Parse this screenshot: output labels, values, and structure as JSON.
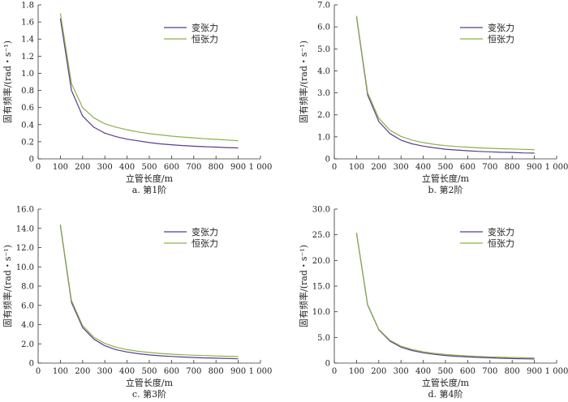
{
  "chart_data": [
    {
      "type": "line",
      "caption": "a. 第1阶",
      "xlabel": "立管长度/m",
      "ylabel": "固有频率/(rad・s⁻¹)",
      "xlim": [
        0,
        1000
      ],
      "ylim": [
        0,
        1.8
      ],
      "xticks": [
        "0",
        "100",
        "200",
        "300",
        "400",
        "500",
        "600",
        "700",
        "800",
        "900",
        "1 000"
      ],
      "yticks": [
        "0",
        "0.2",
        "0.4",
        "0.6",
        "0.8",
        "1.0",
        "1.2",
        "1.4",
        "1.6",
        "1.8"
      ],
      "legend": "top-right",
      "x": [
        100,
        150,
        200,
        250,
        300,
        350,
        400,
        450,
        500,
        550,
        600,
        650,
        700,
        750,
        800,
        850,
        900
      ],
      "series": [
        {
          "name": "变张力",
          "color": "#5b3c8f",
          "values": [
            1.64,
            0.8,
            0.5,
            0.37,
            0.3,
            0.26,
            0.23,
            0.21,
            0.19,
            0.175,
            0.165,
            0.155,
            0.148,
            0.142,
            0.137,
            0.132,
            0.128
          ]
        },
        {
          "name": "恒张力",
          "color": "#8cb04a",
          "values": [
            1.7,
            0.88,
            0.6,
            0.48,
            0.41,
            0.37,
            0.34,
            0.315,
            0.295,
            0.28,
            0.265,
            0.255,
            0.245,
            0.235,
            0.228,
            0.22,
            0.212
          ]
        }
      ]
    },
    {
      "type": "line",
      "caption": "b. 第2阶",
      "xlabel": "立管长度/m",
      "ylabel": "固有频率/(rad・s⁻¹)",
      "xlim": [
        0,
        1000
      ],
      "ylim": [
        0,
        7
      ],
      "xticks": [
        "0",
        "100",
        "200",
        "300",
        "400",
        "500",
        "600",
        "700",
        "800",
        "900",
        "1 000"
      ],
      "yticks": [
        "0",
        "1.0",
        "2.0",
        "3.0",
        "4.0",
        "5.0",
        "6.0",
        "7.0"
      ],
      "legend": "top-right",
      "x": [
        100,
        150,
        200,
        250,
        300,
        350,
        400,
        450,
        500,
        550,
        600,
        650,
        700,
        750,
        800,
        850,
        900
      ],
      "series": [
        {
          "name": "变张力",
          "color": "#5b3c8f",
          "values": [
            6.45,
            2.9,
            1.7,
            1.15,
            0.85,
            0.68,
            0.58,
            0.5,
            0.44,
            0.4,
            0.37,
            0.34,
            0.32,
            0.3,
            0.29,
            0.27,
            0.26
          ]
        },
        {
          "name": "恒张力",
          "color": "#8cb04a",
          "values": [
            6.5,
            3.0,
            1.85,
            1.3,
            1.02,
            0.85,
            0.74,
            0.66,
            0.6,
            0.56,
            0.53,
            0.5,
            0.48,
            0.46,
            0.45,
            0.43,
            0.42
          ]
        }
      ]
    },
    {
      "type": "line",
      "caption": "c. 第3阶",
      "xlabel": "立管长度/m",
      "ylabel": "固有频率/(rad・s⁻¹)",
      "xlim": [
        0,
        1000
      ],
      "ylim": [
        0,
        16
      ],
      "xticks": [
        "0",
        "100",
        "200",
        "300",
        "400",
        "500",
        "600",
        "700",
        "800",
        "900",
        "1 000"
      ],
      "yticks": [
        "0",
        "2.0",
        "4.0",
        "6.0",
        "8.0",
        "10.0",
        "12.0",
        "14.0",
        "16.0"
      ],
      "legend": "top-right",
      "x": [
        100,
        150,
        200,
        250,
        300,
        350,
        400,
        450,
        500,
        550,
        600,
        650,
        700,
        750,
        800,
        850,
        900
      ],
      "series": [
        {
          "name": "变张力",
          "color": "#5b3c8f",
          "values": [
            14.3,
            6.3,
            3.7,
            2.5,
            1.8,
            1.4,
            1.15,
            0.98,
            0.85,
            0.76,
            0.69,
            0.63,
            0.58,
            0.54,
            0.51,
            0.48,
            0.45
          ]
        },
        {
          "name": "恒张力",
          "color": "#8cb04a",
          "values": [
            14.4,
            6.5,
            3.9,
            2.7,
            2.05,
            1.65,
            1.4,
            1.22,
            1.1,
            1.0,
            0.93,
            0.87,
            0.82,
            0.78,
            0.74,
            0.71,
            0.68
          ]
        }
      ]
    },
    {
      "type": "line",
      "caption": "d. 第4阶",
      "xlabel": "立管长度/m",
      "ylabel": "固有频率/(rad・s⁻¹)",
      "xlim": [
        0,
        1000
      ],
      "ylim": [
        0,
        30
      ],
      "xticks": [
        "0",
        "100",
        "200",
        "300",
        "400",
        "500",
        "600",
        "700",
        "800",
        "900",
        "1 000"
      ],
      "yticks": [
        "0",
        "5.0",
        "10.0",
        "15.0",
        "20.0",
        "25.0",
        "30.0"
      ],
      "legend": "top-right",
      "x": [
        100,
        150,
        200,
        250,
        300,
        350,
        400,
        450,
        500,
        550,
        600,
        650,
        700,
        750,
        800,
        850,
        900
      ],
      "series": [
        {
          "name": "变张力",
          "color": "#5b3c8f",
          "values": [
            25.3,
            11.3,
            6.5,
            4.3,
            3.1,
            2.45,
            2.0,
            1.7,
            1.48,
            1.32,
            1.2,
            1.1,
            1.02,
            0.95,
            0.89,
            0.84,
            0.8
          ]
        },
        {
          "name": "恒张力",
          "color": "#8cb04a",
          "values": [
            25.4,
            11.4,
            6.6,
            4.45,
            3.3,
            2.65,
            2.2,
            1.9,
            1.68,
            1.52,
            1.4,
            1.3,
            1.22,
            1.15,
            1.09,
            1.04,
            1.0
          ]
        }
      ]
    }
  ]
}
